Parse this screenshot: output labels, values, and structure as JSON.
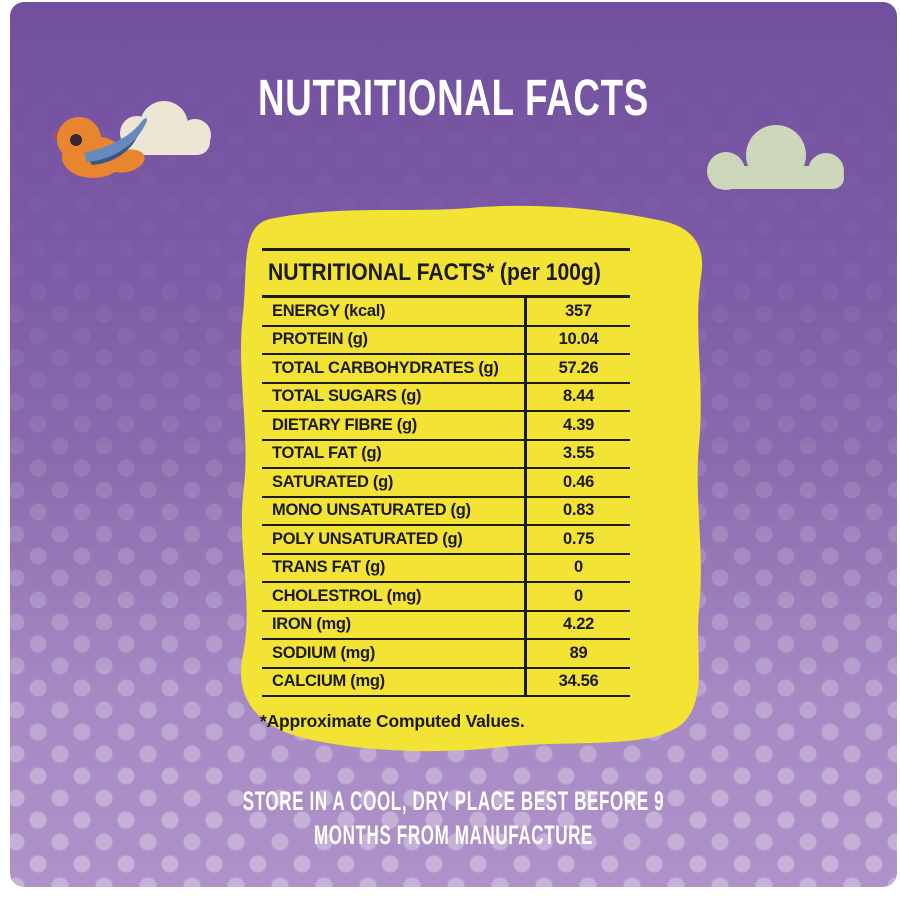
{
  "page_title": "NUTRITIONAL FACTS",
  "label": {
    "header": "NUTRITIONAL FACTS* (per 100g)",
    "rows": [
      {
        "name": "ENERGY (kcal)",
        "value": "357"
      },
      {
        "name": "PROTEIN (g)",
        "value": "10.04"
      },
      {
        "name": "TOTAL CARBOHYDRATES (g)",
        "value": "57.26"
      },
      {
        "name": "TOTAL SUGARS (g)",
        "value": "8.44"
      },
      {
        "name": "DIETARY FIBRE (g)",
        "value": "4.39"
      },
      {
        "name": "TOTAL FAT (g)",
        "value": "3.55"
      },
      {
        "name": "SATURATED (g)",
        "value": "0.46"
      },
      {
        "name": "MONO UNSATURATED (g)",
        "value": "0.83"
      },
      {
        "name": "POLY UNSATURATED (g)",
        "value": "0.75"
      },
      {
        "name": "TRANS FAT (g)",
        "value": "0"
      },
      {
        "name": "CHOLESTROL (mg)",
        "value": "0"
      },
      {
        "name": "IRON (mg)",
        "value": "4.22"
      },
      {
        "name": "SODIUM (mg)",
        "value": "89"
      },
      {
        "name": "CALCIUM (mg)",
        "value": "34.56"
      }
    ],
    "footnote": "*Approximate Computed Values."
  },
  "storage_note": {
    "line1": "STORE IN A COOL, DRY PLACE BEST BEFORE 9",
    "line2": "MONTHS FROM MANUFACTURE"
  },
  "illustrations": {
    "bird": "orange-bird-flying",
    "cloud_left": "cream-cloud",
    "cloud_right": "sage-green-cloud"
  },
  "colors": {
    "background_top": "#71509E",
    "background_middle": "#8A6BAE",
    "background_bottom": "#AF92C9",
    "label_yellow": "#F2E335",
    "text_black": "#1C1A1A",
    "text_white": "#FFFFFF",
    "cloud_cream": "#EDE6D5",
    "cloud_green": "#CDD7B9",
    "bird_orange": "#E8862F",
    "bird_beak_red": "#D9442E",
    "bird_eye": "#382634",
    "bird_wing_light_blue": "#6889BF",
    "bird_wing_dark_blue": "#3A577F"
  }
}
